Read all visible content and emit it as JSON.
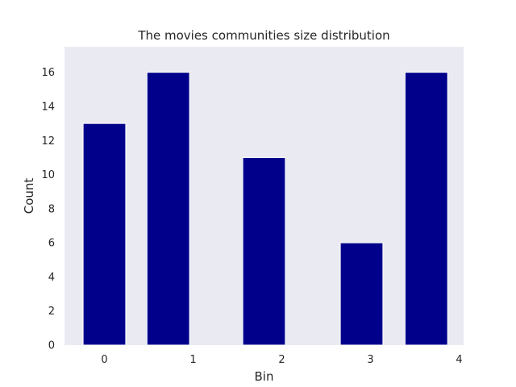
{
  "chart_data": {
    "type": "bar",
    "title": "The movies communities size distribution",
    "xlabel": "Bin",
    "ylabel": "Count",
    "bars": [
      {
        "x": 0.0,
        "value": 13
      },
      {
        "x": 0.72,
        "value": 16
      },
      {
        "x": 1.8,
        "value": 11
      },
      {
        "x": 2.9,
        "value": 6
      },
      {
        "x": 3.63,
        "value": 16
      }
    ],
    "bar_width": 0.48,
    "xlim": [
      -0.45,
      4.05
    ],
    "ylim": [
      0,
      17.5
    ],
    "xticks": [
      "0",
      "1",
      "2",
      "3",
      "4"
    ],
    "yticks": [
      "0",
      "2",
      "4",
      "6",
      "8",
      "10",
      "12",
      "14",
      "16"
    ],
    "grid": false,
    "colors": {
      "bar": "#00008b",
      "plot_background": "#eaeaf2",
      "text": "#262626"
    }
  }
}
